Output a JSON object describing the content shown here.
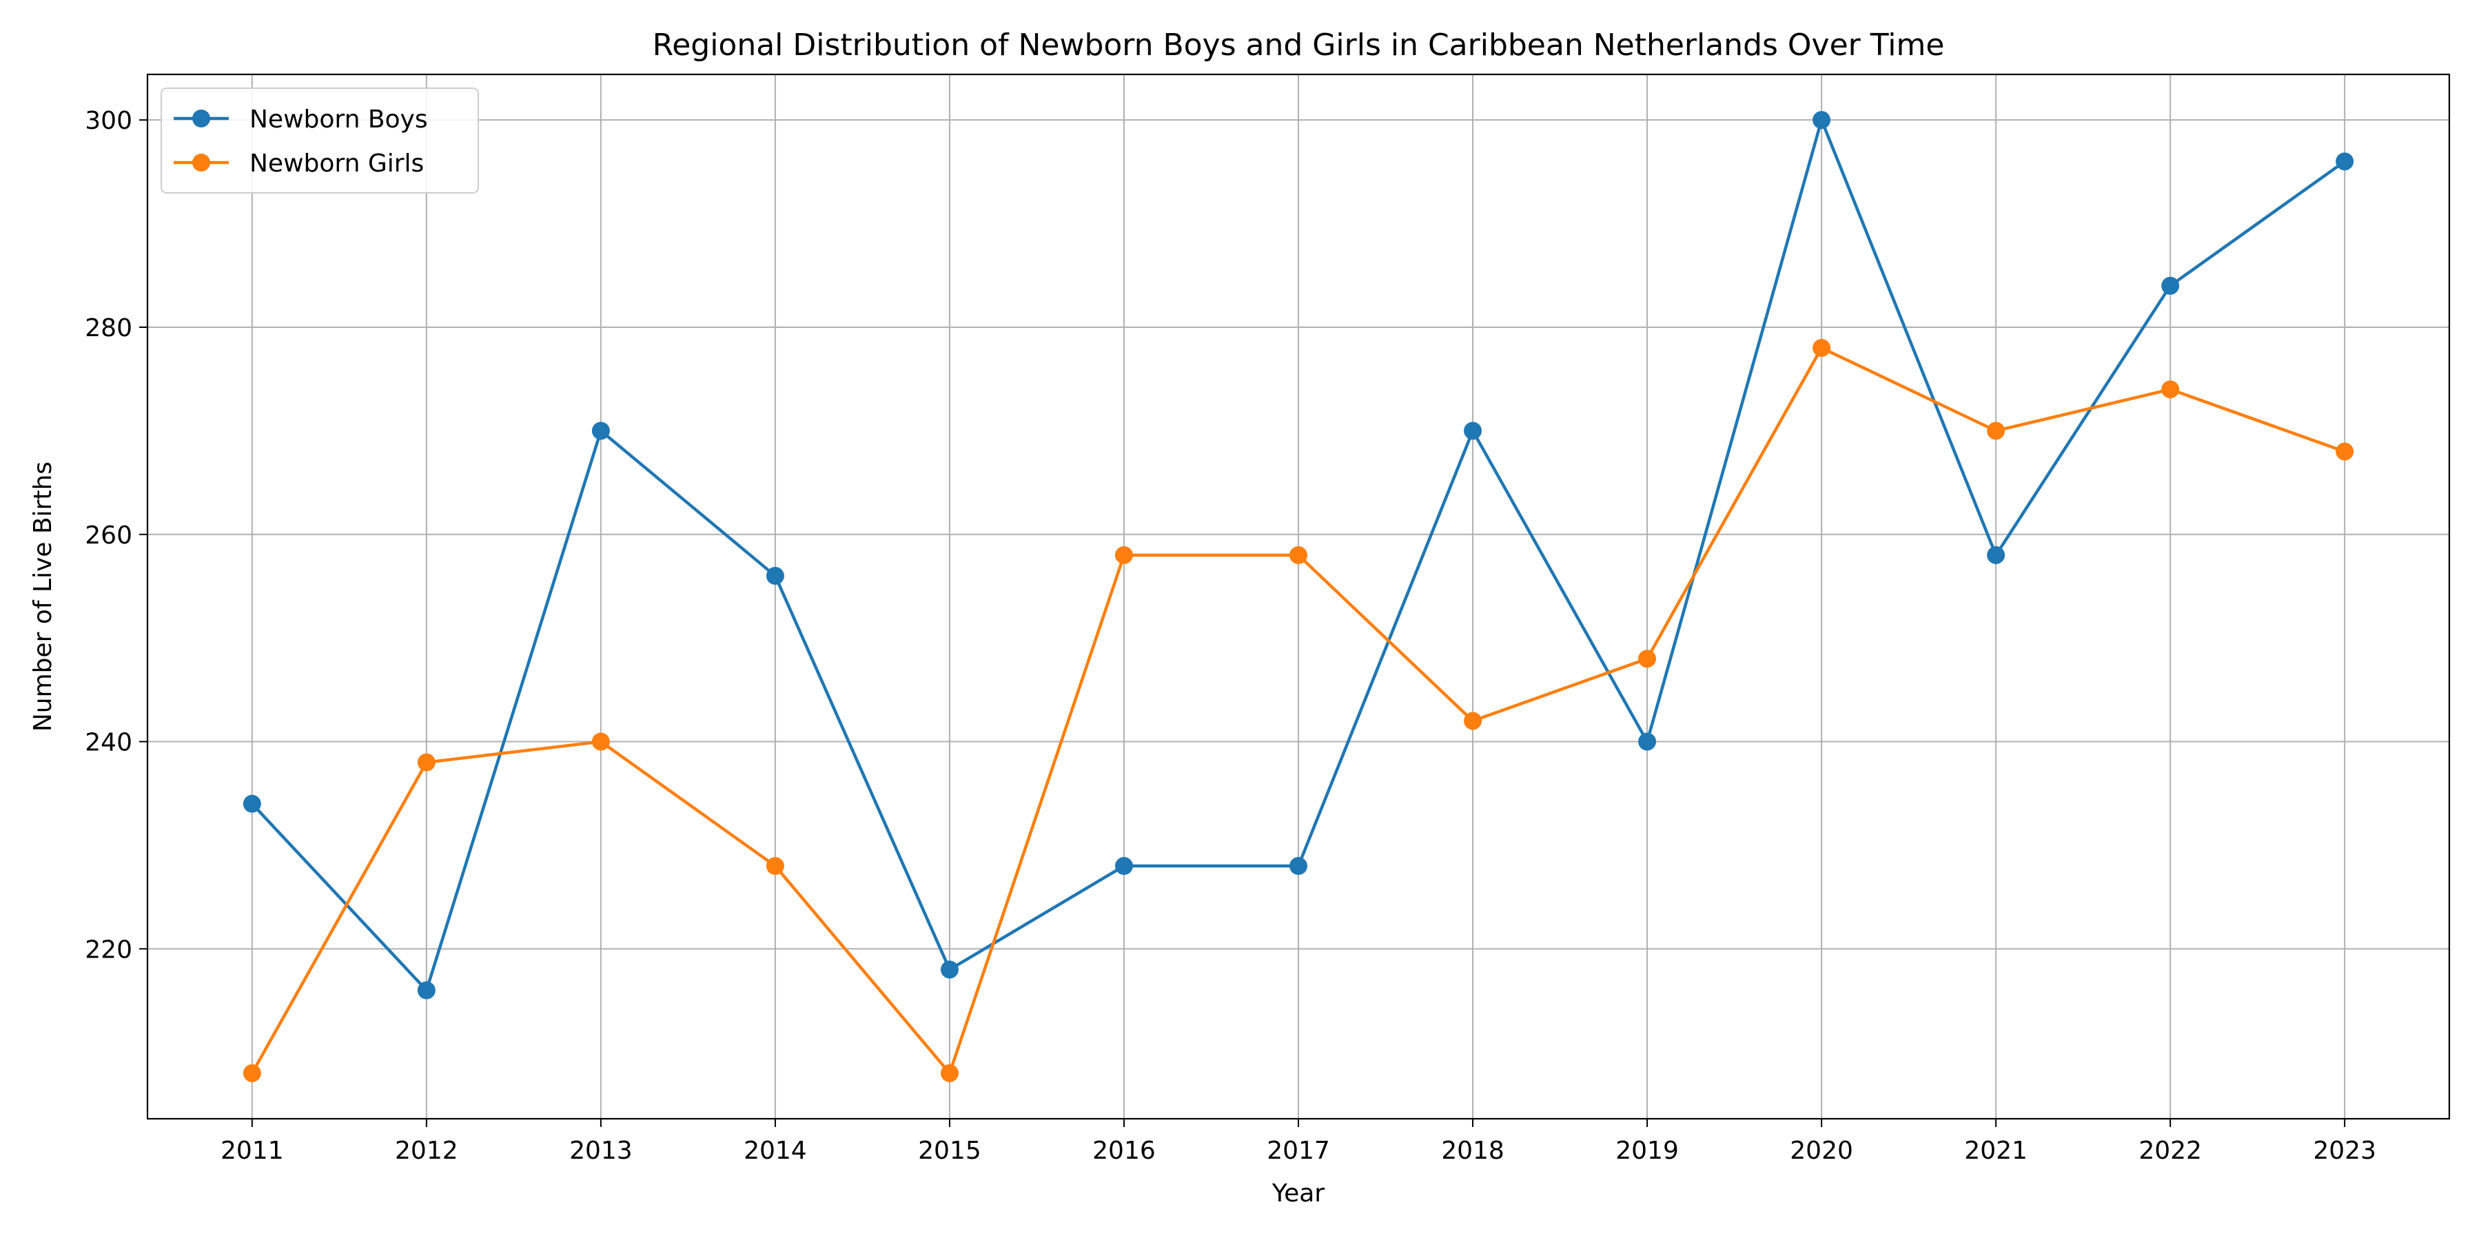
{
  "chart_data": {
    "type": "line",
    "title": "Regional Distribution of Newborn Boys and Girls in Caribbean Netherlands Over Time",
    "xlabel": "Year",
    "ylabel": "Number of Live Births",
    "x": [
      2011,
      2012,
      2013,
      2014,
      2015,
      2016,
      2017,
      2018,
      2019,
      2020,
      2021,
      2022,
      2023
    ],
    "x_tick_labels": [
      "2011",
      "2012",
      "2013",
      "2014",
      "2015",
      "2016",
      "2017",
      "2018",
      "2019",
      "2020",
      "2021",
      "2022",
      "2023"
    ],
    "xlim": [
      2010.4,
      2023.6
    ],
    "ylim": [
      203.6,
      304.4
    ],
    "y_ticks": [
      220,
      240,
      260,
      280,
      300
    ],
    "y_tick_labels": [
      "220",
      "240",
      "260",
      "280",
      "300"
    ],
    "grid": true,
    "legend_position": "top-left",
    "series": [
      {
        "name": "Newborn Boys",
        "color": "#1f77b4",
        "values": [
          234,
          216,
          270,
          256,
          218,
          228,
          228,
          270,
          240,
          300,
          258,
          284,
          296
        ]
      },
      {
        "name": "Newborn Girls",
        "color": "#ff7f0e",
        "values": [
          208,
          238,
          240,
          228,
          208,
          258,
          258,
          242,
          248,
          278,
          270,
          274,
          268
        ]
      }
    ]
  }
}
